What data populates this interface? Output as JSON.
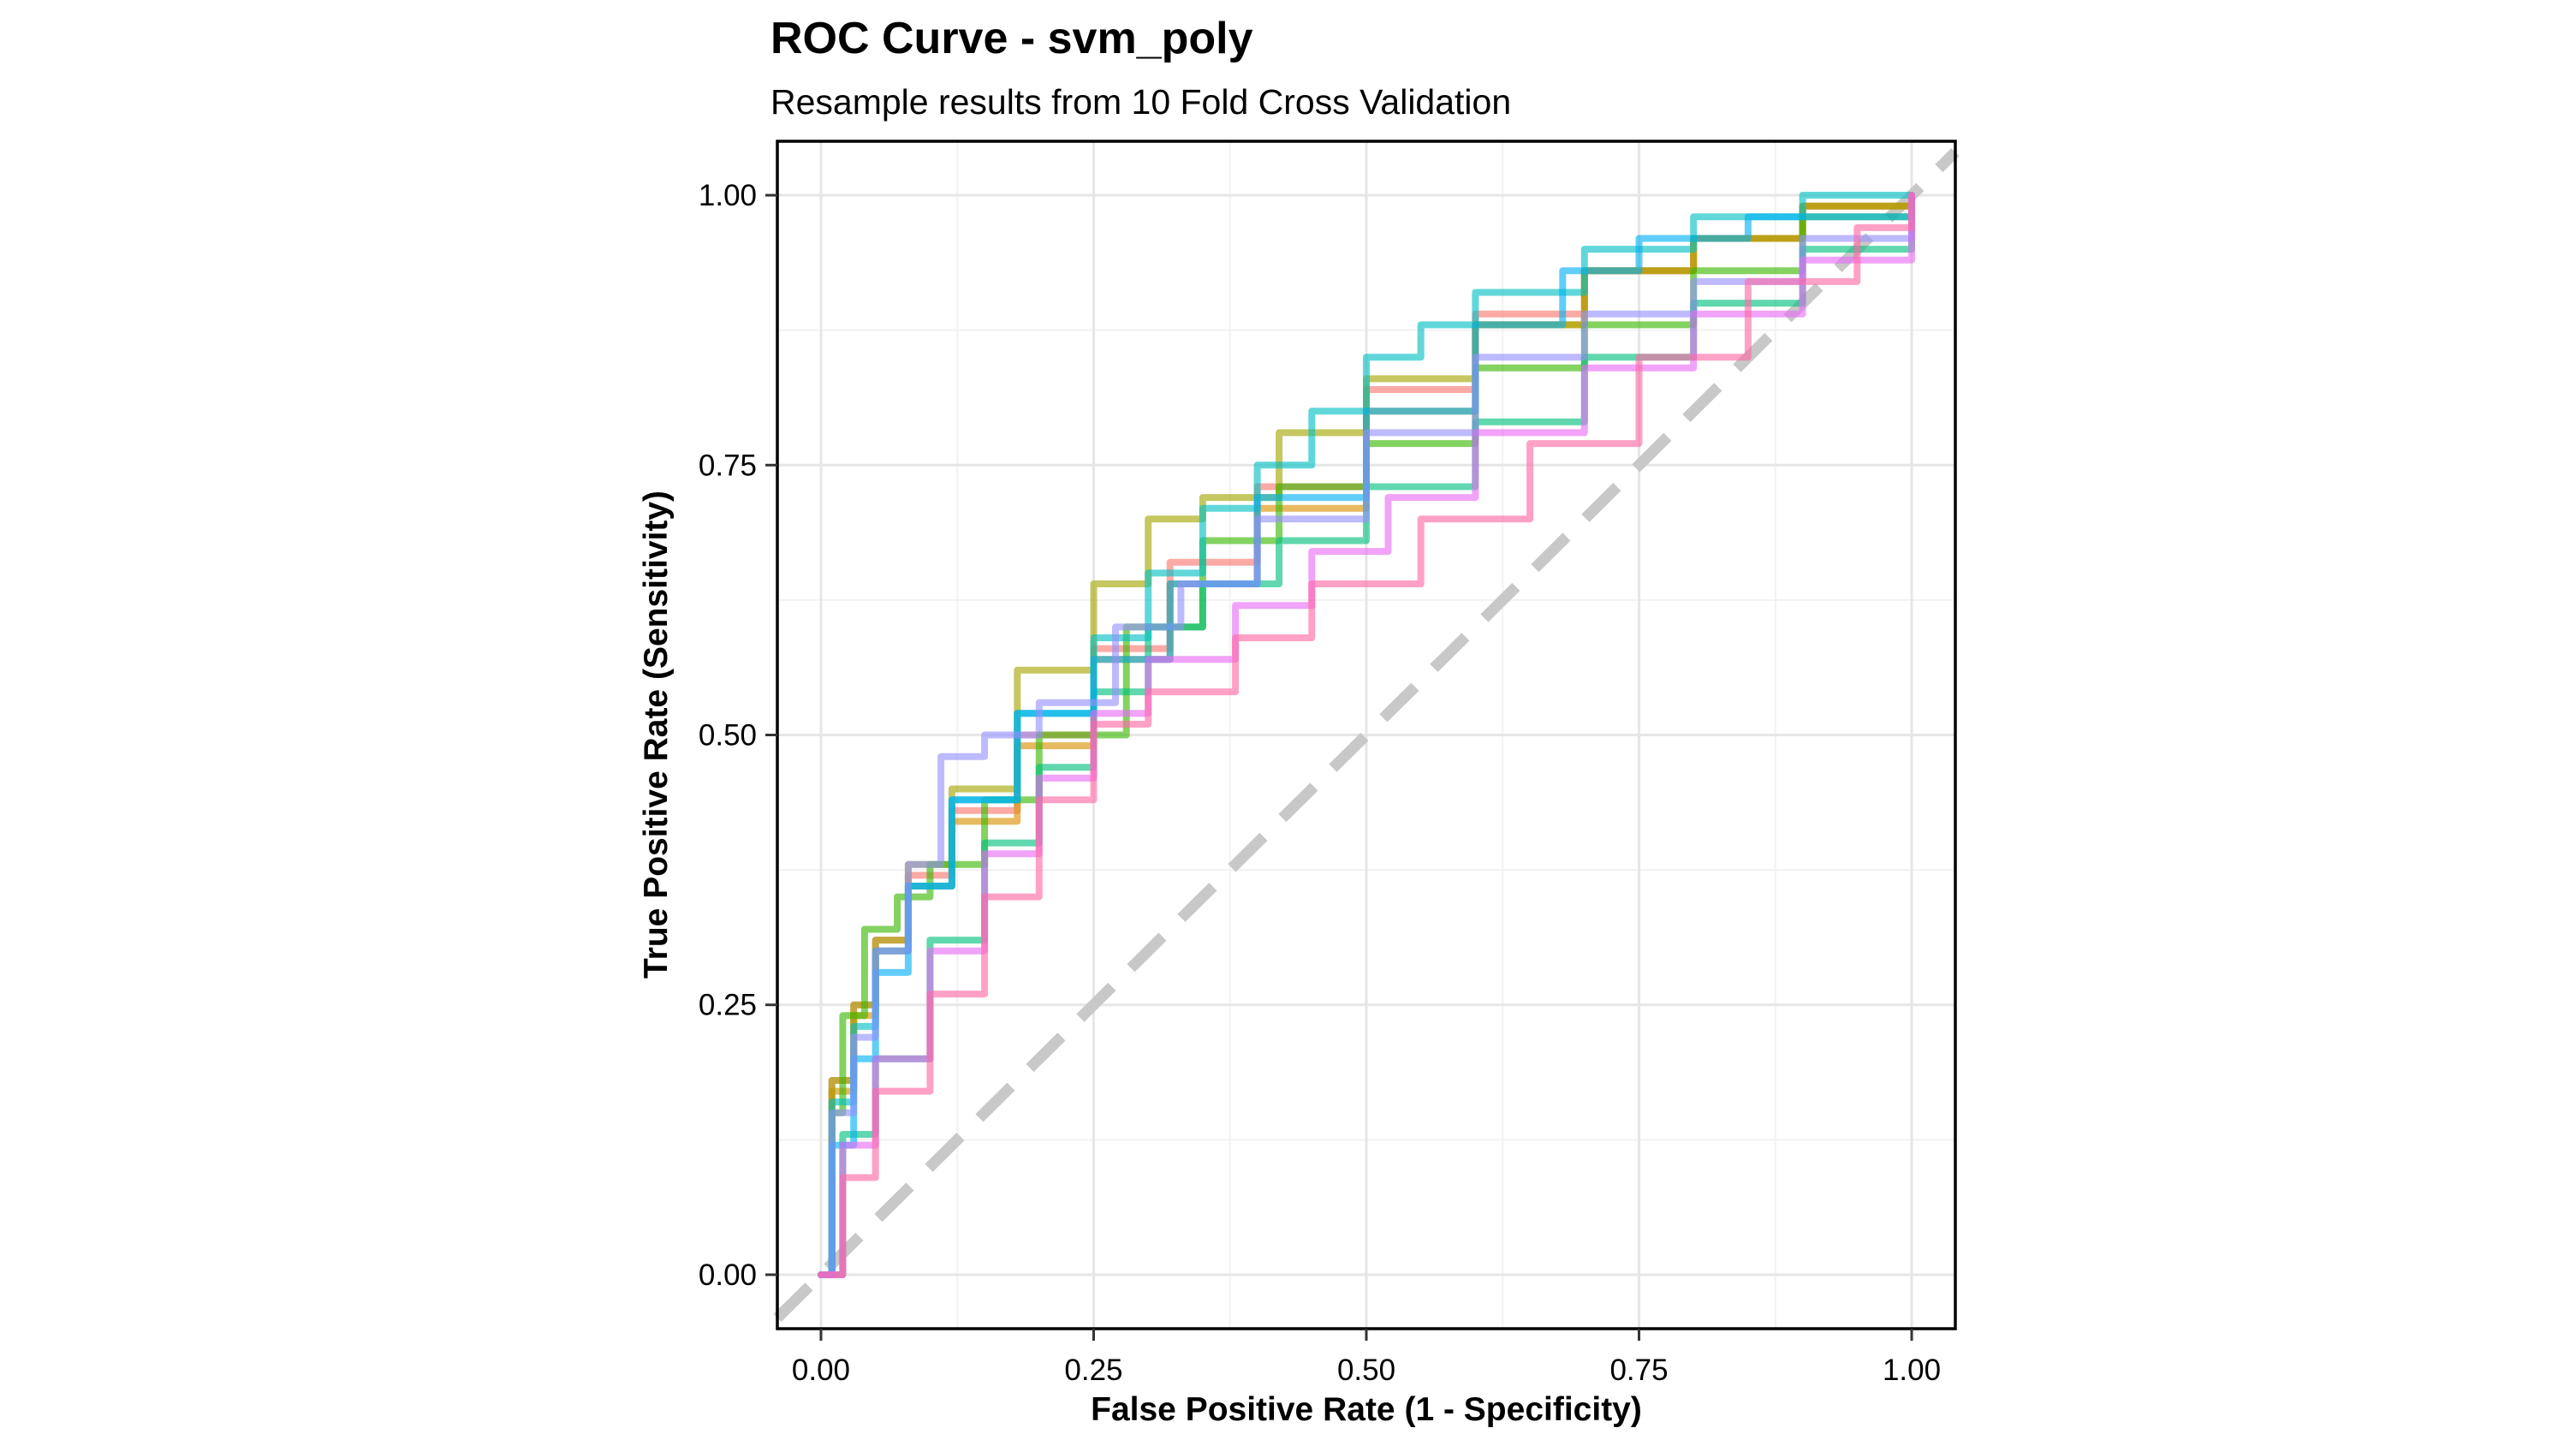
{
  "chart_data": {
    "type": "line",
    "title": "ROC Curve - svm_poly",
    "subtitle": "Resample results from 10 Fold Cross Validation",
    "xlabel": "False Positive Rate (1 - Specificity)",
    "ylabel": "True Positive Rate (Sensitivity)",
    "xlim": [
      -0.04,
      1.04
    ],
    "ylim": [
      -0.05,
      1.05
    ],
    "x_ticks": [
      0,
      0.25,
      0.5,
      0.75,
      1
    ],
    "x_tick_labels": [
      "0.00",
      "0.25",
      "0.50",
      "0.75",
      "1.00"
    ],
    "y_ticks": [
      0,
      0.25,
      0.5,
      0.75,
      1
    ],
    "y_tick_labels": [
      "0.00",
      "0.25",
      "0.50",
      "0.75",
      "1.00"
    ],
    "grid": true,
    "legend": "none",
    "reference_line": {
      "x": [
        -0.04,
        1.04
      ],
      "y": [
        -0.04,
        1.04
      ],
      "color": "#c8c8c8",
      "style": "dashed"
    },
    "series": [
      {
        "color": "#F8766D",
        "x": [
          0,
          0.01,
          0.03,
          0.05,
          0.08,
          0.12,
          0.18,
          0.25,
          0.32,
          0.4,
          0.5,
          0.6,
          0.7,
          0.8,
          0.9,
          1
        ],
        "y": [
          0,
          0.18,
          0.25,
          0.31,
          0.37,
          0.43,
          0.5,
          0.58,
          0.66,
          0.73,
          0.82,
          0.89,
          0.93,
          0.96,
          0.99,
          1
        ]
      },
      {
        "color": "#D89000",
        "x": [
          0,
          0.01,
          0.03,
          0.05,
          0.08,
          0.12,
          0.18,
          0.25,
          0.32,
          0.4,
          0.5,
          0.6,
          0.7,
          0.8,
          0.9,
          1
        ],
        "y": [
          0,
          0.17,
          0.24,
          0.3,
          0.36,
          0.42,
          0.49,
          0.57,
          0.64,
          0.71,
          0.8,
          0.88,
          0.93,
          0.96,
          0.99,
          1
        ]
      },
      {
        "color": "#A3A500",
        "x": [
          0,
          0.01,
          0.03,
          0.05,
          0.08,
          0.12,
          0.18,
          0.25,
          0.3,
          0.35,
          0.42,
          0.5,
          0.6,
          0.7,
          0.8,
          0.9,
          1
        ],
        "y": [
          0,
          0.18,
          0.25,
          0.31,
          0.38,
          0.45,
          0.56,
          0.64,
          0.7,
          0.72,
          0.78,
          0.83,
          0.88,
          0.93,
          0.96,
          0.99,
          1
        ]
      },
      {
        "color": "#39B600",
        "x": [
          0,
          0.01,
          0.02,
          0.04,
          0.07,
          0.1,
          0.15,
          0.2,
          0.28,
          0.35,
          0.42,
          0.5,
          0.6,
          0.7,
          0.8,
          0.9,
          1
        ],
        "y": [
          0,
          0.15,
          0.24,
          0.32,
          0.35,
          0.38,
          0.44,
          0.5,
          0.6,
          0.68,
          0.73,
          0.77,
          0.84,
          0.88,
          0.93,
          0.98,
          1
        ]
      },
      {
        "color": "#00BF7D",
        "x": [
          0,
          0.02,
          0.05,
          0.1,
          0.15,
          0.2,
          0.25,
          0.3,
          0.35,
          0.42,
          0.5,
          0.6,
          0.7,
          0.8,
          0.9,
          1
        ],
        "y": [
          0,
          0.13,
          0.2,
          0.31,
          0.4,
          0.47,
          0.54,
          0.6,
          0.64,
          0.68,
          0.73,
          0.79,
          0.85,
          0.9,
          0.95,
          1
        ]
      },
      {
        "color": "#00BFC4",
        "x": [
          0,
          0.01,
          0.03,
          0.05,
          0.08,
          0.12,
          0.18,
          0.25,
          0.3,
          0.35,
          0.4,
          0.45,
          0.5,
          0.55,
          0.6,
          0.7,
          0.8,
          0.9,
          1
        ],
        "y": [
          0,
          0.16,
          0.23,
          0.3,
          0.36,
          0.44,
          0.52,
          0.59,
          0.65,
          0.71,
          0.75,
          0.8,
          0.85,
          0.88,
          0.91,
          0.95,
          0.98,
          1,
          1
        ]
      },
      {
        "color": "#00B0F6",
        "x": [
          0,
          0.01,
          0.03,
          0.05,
          0.08,
          0.12,
          0.18,
          0.25,
          0.32,
          0.4,
          0.5,
          0.6,
          0.68,
          0.75,
          0.85,
          1
        ],
        "y": [
          0,
          0.12,
          0.2,
          0.28,
          0.36,
          0.44,
          0.52,
          0.57,
          0.64,
          0.72,
          0.8,
          0.88,
          0.93,
          0.96,
          0.98,
          1
        ]
      },
      {
        "color": "#9590FF",
        "x": [
          0,
          0.01,
          0.03,
          0.05,
          0.08,
          0.11,
          0.15,
          0.2,
          0.27,
          0.33,
          0.4,
          0.5,
          0.6,
          0.7,
          0.8,
          0.9,
          1
        ],
        "y": [
          0,
          0.15,
          0.22,
          0.3,
          0.38,
          0.48,
          0.5,
          0.53,
          0.6,
          0.64,
          0.7,
          0.78,
          0.85,
          0.89,
          0.92,
          0.96,
          1
        ]
      },
      {
        "color": "#E76BF3",
        "x": [
          0,
          0.02,
          0.05,
          0.1,
          0.15,
          0.2,
          0.25,
          0.3,
          0.38,
          0.45,
          0.52,
          0.6,
          0.7,
          0.8,
          0.9,
          1
        ],
        "y": [
          0,
          0.12,
          0.2,
          0.3,
          0.39,
          0.46,
          0.52,
          0.57,
          0.62,
          0.67,
          0.72,
          0.78,
          0.84,
          0.89,
          0.94,
          1
        ]
      },
      {
        "color": "#FF67A4",
        "x": [
          0,
          0.02,
          0.05,
          0.1,
          0.15,
          0.2,
          0.25,
          0.3,
          0.38,
          0.45,
          0.55,
          0.65,
          0.75,
          0.85,
          0.95,
          1
        ],
        "y": [
          0,
          0.09,
          0.17,
          0.26,
          0.35,
          0.44,
          0.51,
          0.54,
          0.59,
          0.64,
          0.7,
          0.77,
          0.85,
          0.92,
          0.97,
          1
        ]
      }
    ]
  }
}
